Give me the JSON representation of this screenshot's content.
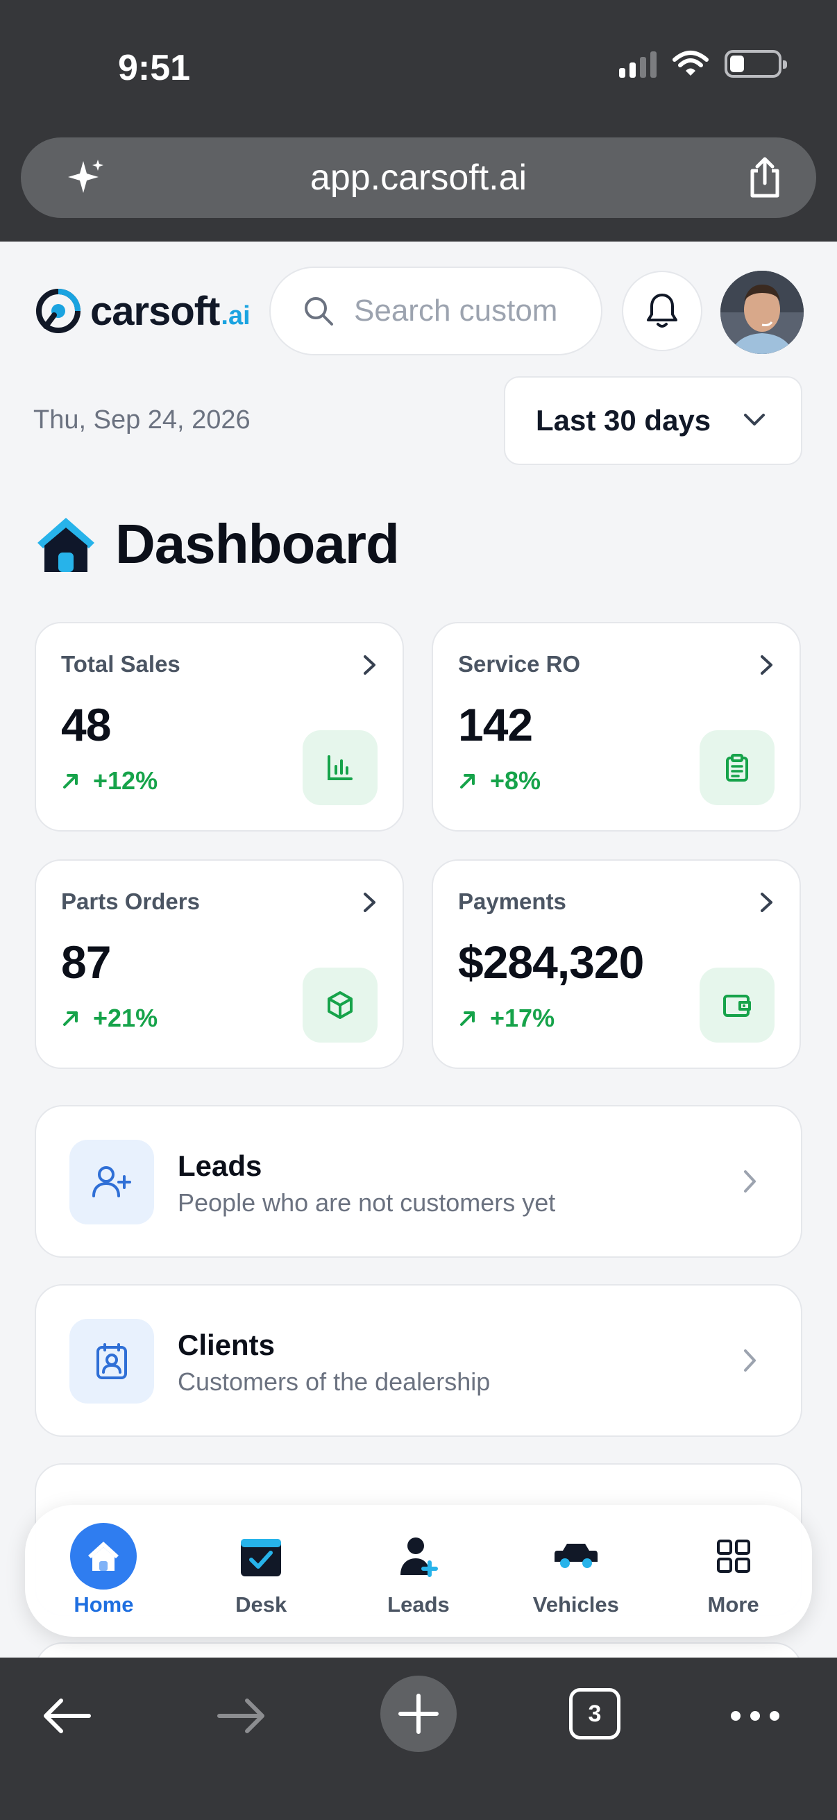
{
  "status": {
    "time": "9:51"
  },
  "browser": {
    "url": "app.carsoft.ai",
    "tab_count": "3"
  },
  "header": {
    "logo_word": "carsoft",
    "logo_suffix": ".ai",
    "search_placeholder": "Search custom"
  },
  "date_text": "Thu, Sep 24, 2026",
  "range_label": "Last 30 days",
  "page_title": "Dashboard",
  "stats": [
    {
      "label": "Total Sales",
      "value": "48",
      "change": "+12%",
      "icon": "bar-chart-icon"
    },
    {
      "label": "Service RO",
      "value": "142",
      "change": "+8%",
      "icon": "clipboard-icon"
    },
    {
      "label": "Parts Orders",
      "value": "87",
      "change": "+21%",
      "icon": "package-icon"
    },
    {
      "label": "Payments",
      "value": "$284,320",
      "change": "+17%",
      "icon": "wallet-icon"
    }
  ],
  "sections": [
    {
      "title": "Leads",
      "subtitle": "People who are not customers yet",
      "icon": "user-plus-icon"
    },
    {
      "title": "Clients",
      "subtitle": "Customers of the dealership",
      "icon": "contact-card-icon"
    }
  ],
  "tabs": [
    {
      "label": "Home",
      "icon": "home-icon",
      "active": true
    },
    {
      "label": "Desk",
      "icon": "calendar-check-icon"
    },
    {
      "label": "Leads",
      "icon": "user-add-icon"
    },
    {
      "label": "Vehicles",
      "icon": "car-icon"
    },
    {
      "label": "More",
      "icon": "grid-icon"
    }
  ],
  "colors": {
    "accent": "#2f7df0",
    "positive": "#16a34a",
    "chrome": "#36373a",
    "logo_accent": "#1aa3e0"
  }
}
